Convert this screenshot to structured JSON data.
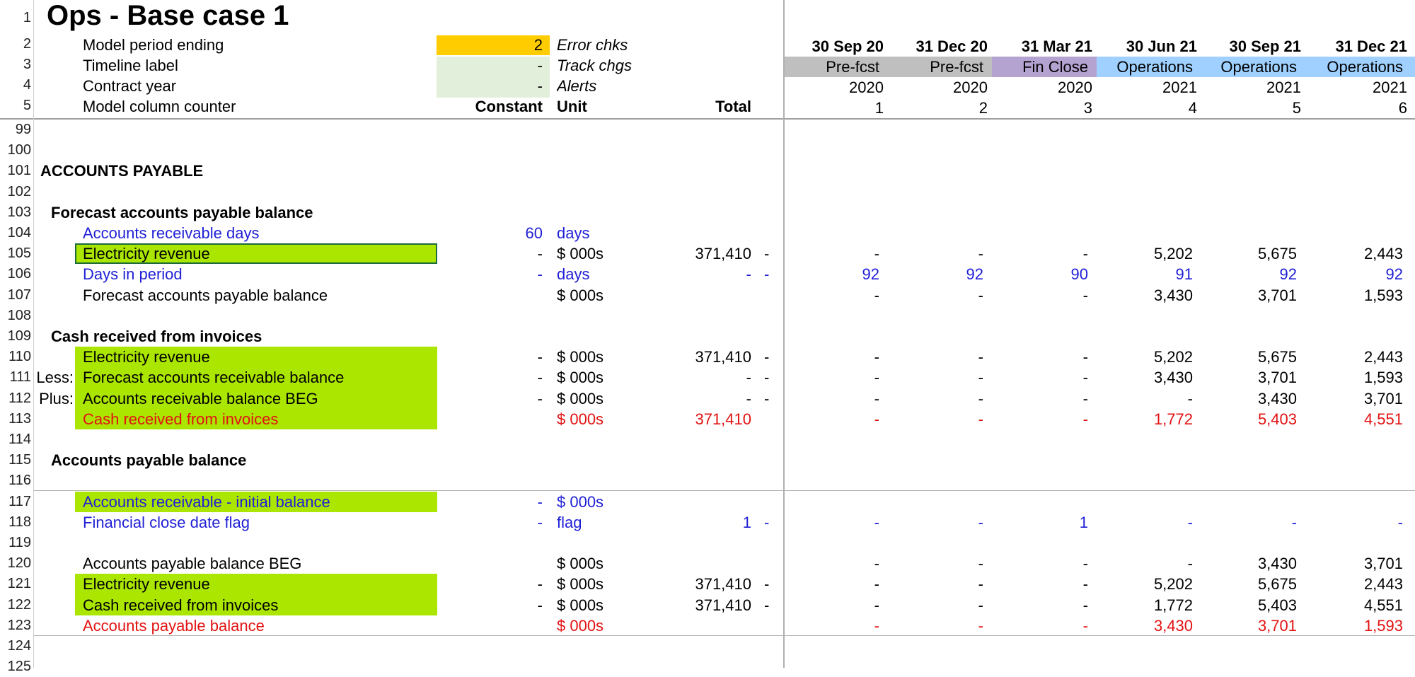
{
  "sheet": {
    "title": "Ops - Base case 1",
    "header_rows": {
      "r2": {
        "label": "Model period ending",
        "value": "2",
        "tag": "Error chks"
      },
      "r3": {
        "label": "Timeline label",
        "value": "-",
        "tag": "Track chgs"
      },
      "r4": {
        "label": "Contract year",
        "value": "-",
        "tag": "Alerts"
      },
      "r5": {
        "label": "Model column counter",
        "constant": "Constant",
        "unit": "Unit",
        "total": "Total"
      }
    },
    "periods": [
      {
        "date": "30 Sep 20",
        "label": "Pre-fcst",
        "year": "2020",
        "counter": "1",
        "color": "#bfbfbf"
      },
      {
        "date": "31 Dec 20",
        "label": "Pre-fcst",
        "year": "2020",
        "counter": "2",
        "color": "#bfbfbf"
      },
      {
        "date": "31 Mar 21",
        "label": "Fin Close",
        "year": "2020",
        "counter": "3",
        "color": "#b4a3d1"
      },
      {
        "date": "30 Jun 21",
        "label": "Operations",
        "year": "2021",
        "counter": "4",
        "color": "#9fd0ff"
      },
      {
        "date": "30 Sep 21",
        "label": "Operations",
        "year": "2021",
        "counter": "5",
        "color": "#9fd0ff"
      },
      {
        "date": "31 Dec 21",
        "label": "Operations",
        "year": "2021",
        "counter": "6",
        "color": "#9fd0ff"
      }
    ],
    "rows": [
      {
        "n": "99"
      },
      {
        "n": "100"
      },
      {
        "n": "101",
        "section": "ACCOUNTS PAYABLE"
      },
      {
        "n": "102"
      },
      {
        "n": "103",
        "subsection": "Forecast accounts payable balance"
      },
      {
        "n": "104",
        "label": "Accounts receivable days",
        "color": "blue",
        "constant": "60",
        "unit": "days"
      },
      {
        "n": "105",
        "label": "Electricity revenue",
        "fill": true,
        "selected": true,
        "constant": "-",
        "unit": "$ 000s",
        "total": "371,410",
        "dash": "-",
        "vals": [
          "-",
          "-",
          "-",
          "5,202",
          "5,675",
          "2,443"
        ]
      },
      {
        "n": "106",
        "label": "Days in period",
        "color": "blue",
        "constant": "-",
        "unit": "days",
        "total": "-",
        "dash": "-",
        "vals": [
          "92",
          "92",
          "90",
          "91",
          "92",
          "92"
        ]
      },
      {
        "n": "107",
        "label": "Forecast accounts payable balance",
        "unit": "$ 000s",
        "vals": [
          "-",
          "-",
          "-",
          "3,430",
          "3,701",
          "1,593"
        ]
      },
      {
        "n": "108"
      },
      {
        "n": "109",
        "subsection": "Cash received from invoices"
      },
      {
        "n": "110",
        "label": "Electricity revenue",
        "fill": true,
        "constant": "-",
        "unit": "$ 000s",
        "total": "371,410",
        "dash": "-",
        "vals": [
          "-",
          "-",
          "-",
          "5,202",
          "5,675",
          "2,443"
        ]
      },
      {
        "n": "111",
        "prefix": "Less:",
        "label": "Forecast accounts receivable balance",
        "fill": true,
        "constant": "-",
        "unit": "$ 000s",
        "total": "-",
        "dash": "-",
        "vals": [
          "-",
          "-",
          "-",
          "3,430",
          "3,701",
          "1,593"
        ]
      },
      {
        "n": "112",
        "prefix": "Plus:",
        "label": "Accounts receivable balance BEG",
        "fill": true,
        "constant": "-",
        "unit": "$ 000s",
        "total": "-",
        "dash": "-",
        "vals": [
          "-",
          "-",
          "-",
          "-",
          "3,430",
          "3,701"
        ]
      },
      {
        "n": "113",
        "label": "Cash received from invoices",
        "color": "red",
        "fill": true,
        "unit": "$ 000s",
        "total": "371,410",
        "vals": [
          "-",
          "-",
          "-",
          "1,772",
          "5,403",
          "4,551"
        ]
      },
      {
        "n": "114"
      },
      {
        "n": "115",
        "subsection": "Accounts payable balance"
      },
      {
        "n": "116"
      },
      {
        "n": "117",
        "label": "Accounts receivable - initial balance",
        "color": "blue",
        "fill": true,
        "constant": "-",
        "unit": "$ 000s"
      },
      {
        "n": "118",
        "label": "Financial close date flag",
        "color": "blue",
        "constant": "-",
        "unit": "flag",
        "total": "1",
        "dash": "-",
        "vals": [
          "-",
          "-",
          "1",
          "-",
          "-",
          "-"
        ]
      },
      {
        "n": "119"
      },
      {
        "n": "120",
        "label": "Accounts payable balance BEG",
        "unit": "$ 000s",
        "vals": [
          "-",
          "-",
          "-",
          "-",
          "3,430",
          "3,701"
        ]
      },
      {
        "n": "121",
        "label": "Electricity revenue",
        "fill": true,
        "constant": "-",
        "unit": "$ 000s",
        "total": "371,410",
        "dash": "-",
        "vals": [
          "-",
          "-",
          "-",
          "5,202",
          "5,675",
          "2,443"
        ]
      },
      {
        "n": "122",
        "label": "Cash received from invoices",
        "fill": true,
        "constant": "-",
        "unit": "$ 000s",
        "total": "371,410",
        "dash": "-",
        "vals": [
          "-",
          "-",
          "-",
          "1,772",
          "5,403",
          "4,551"
        ]
      },
      {
        "n": "123",
        "label": "Accounts payable balance",
        "color": "red",
        "unit": "$ 000s",
        "vals": [
          "-",
          "-",
          "-",
          "3,430",
          "3,701",
          "1,593"
        ]
      },
      {
        "n": "124"
      },
      {
        "n": "125"
      }
    ],
    "colors": {
      "input_yellow": "#ffcc00",
      "light_green": "#e2efda",
      "fill_green": "#abe600",
      "blue_text": "#1f1fd6",
      "red_text": "#e31212"
    }
  }
}
